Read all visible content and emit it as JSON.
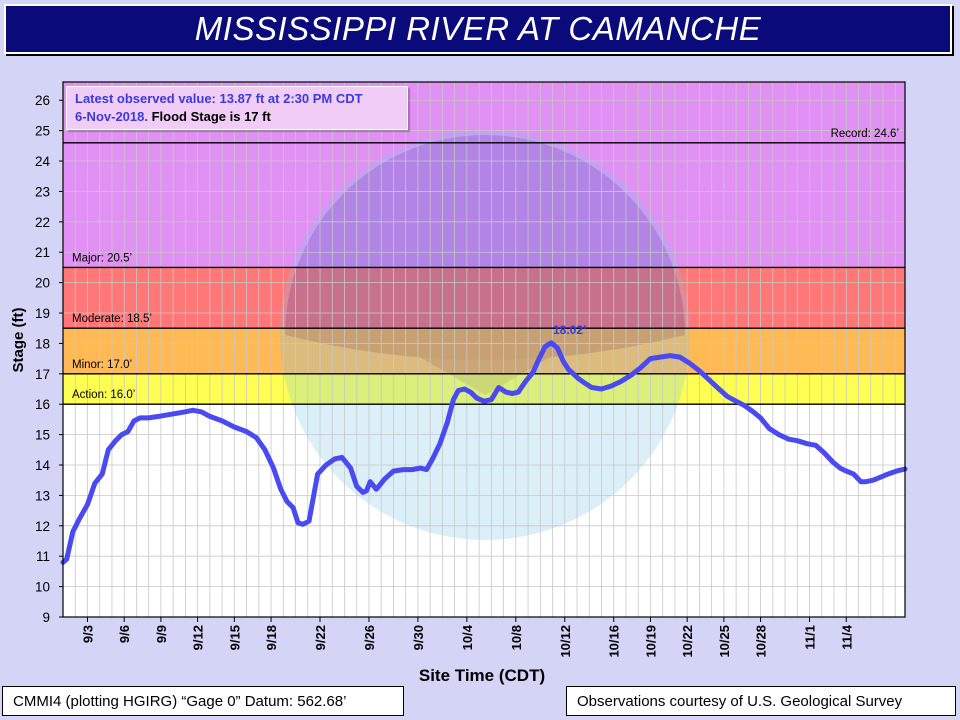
{
  "header": {
    "title": "MISSISSIPPI RIVER AT CAMANCHE"
  },
  "info_box": {
    "line1": "Latest observed value: 13.87 ft at 2:30 PM CDT",
    "line2_date": "6-Nov-2018",
    "line2_flood": "Flood Stage is 17 ft"
  },
  "footer": {
    "datum": "CMMI4 (plotting HGIRG) “Gage 0” Datum: 562.68’",
    "credit": "Observations courtesy of U.S. Geological Survey"
  },
  "chart_data": {
    "type": "line",
    "xlabel": "Site Time (CDT)",
    "ylabel": "Stage (ft)",
    "ylim": [
      9,
      26.6
    ],
    "yticks": [
      9,
      10,
      11,
      12,
      13,
      14,
      15,
      16,
      17,
      18,
      19,
      20,
      21,
      22,
      23,
      24,
      25,
      26
    ],
    "x_range_days": [
      0,
      68.8
    ],
    "x_tick_days": [
      2,
      5,
      8,
      11,
      14,
      17,
      21,
      25,
      29,
      33,
      37,
      41,
      45,
      48,
      51,
      54,
      57,
      61,
      64
    ],
    "x_tick_labels": [
      "9/3",
      "9/6",
      "9/9",
      "9/12",
      "9/15",
      "9/18",
      "9/22",
      "9/26",
      "9/30",
      "10/4",
      "10/8",
      "10/12",
      "10/16",
      "10/19",
      "10/22",
      "10/25",
      "10/28",
      "11/1",
      "11/4"
    ],
    "grid": true,
    "bands": [
      {
        "name": "action",
        "from": 16.0,
        "to": 17.0,
        "color": "#ffff44"
      },
      {
        "name": "minor",
        "from": 17.0,
        "to": 18.5,
        "color": "#ffb347"
      },
      {
        "name": "moderate",
        "from": 18.5,
        "to": 20.5,
        "color": "#ff6b6b"
      },
      {
        "name": "major",
        "from": 20.5,
        "to": 26.6,
        "color": "#dd88f2"
      }
    ],
    "threshold_lines": [
      {
        "value": 16.0,
        "label": "Action: 16.0’",
        "label_align": "left"
      },
      {
        "value": 17.0,
        "label": "Minor: 17.0’",
        "label_align": "left"
      },
      {
        "value": 18.5,
        "label": "Moderate: 18.5’",
        "label_align": "left"
      },
      {
        "value": 20.5,
        "label": "Major: 20.5’",
        "label_align": "left"
      },
      {
        "value": 24.6,
        "label": "Record: 24.6’",
        "label_align": "right"
      }
    ],
    "peak_annotation": {
      "x": 41.4,
      "y": 18.02,
      "label": "18.02’"
    },
    "series": [
      {
        "color": "#4a4af0",
        "x": [
          0,
          0.3,
          0.8,
          1.3,
          2,
          2.6,
          3.2,
          3.7,
          4.3,
          4.8,
          5.3,
          5.8,
          6.3,
          7,
          7.8,
          8.5,
          9.3,
          10,
          10.6,
          11.3,
          12,
          13,
          14,
          15,
          15.8,
          16.5,
          17.2,
          17.8,
          18.3,
          18.8,
          19.2,
          19.6,
          20.1,
          20.8,
          21.5,
          22.2,
          22.8,
          23.5,
          24,
          24.5,
          24.8,
          25.1,
          25.6,
          26.3,
          27,
          27.8,
          28.5,
          29.2,
          29.7,
          30.2,
          30.8,
          31.4,
          31.9,
          32.3,
          32.8,
          33.3,
          33.8,
          34.4,
          35,
          35.6,
          36.2,
          36.7,
          37.2,
          37.8,
          38.4,
          38.9,
          39.4,
          39.9,
          40.4,
          40.9,
          41.3,
          41.7,
          42.1,
          42.6,
          43.2,
          44,
          44.8,
          45.6,
          46.4,
          47.2,
          48,
          48.8,
          49.6,
          50.4,
          51.2,
          52,
          52.8,
          53.6,
          54.3,
          55,
          55.7,
          56.4,
          57,
          57.7,
          58.5,
          59.3,
          60,
          60.8,
          61.5,
          62.2,
          62.9,
          63.5,
          64,
          64.6,
          65.2,
          65.6,
          66.2,
          66.8,
          67.4,
          68.1,
          68.8
        ],
        "values": [
          10.8,
          10.9,
          11.8,
          12.2,
          12.7,
          13.4,
          13.7,
          14.5,
          14.8,
          15.0,
          15.1,
          15.45,
          15.55,
          15.55,
          15.6,
          15.65,
          15.7,
          15.75,
          15.8,
          15.75,
          15.6,
          15.45,
          15.25,
          15.1,
          14.9,
          14.5,
          13.9,
          13.2,
          12.8,
          12.6,
          12.1,
          12.05,
          12.15,
          13.7,
          14.0,
          14.2,
          14.25,
          13.9,
          13.3,
          13.1,
          13.15,
          13.45,
          13.2,
          13.55,
          13.8,
          13.85,
          13.85,
          13.9,
          13.85,
          14.2,
          14.7,
          15.4,
          16.15,
          16.45,
          16.5,
          16.4,
          16.2,
          16.1,
          16.15,
          16.55,
          16.4,
          16.35,
          16.4,
          16.75,
          17.05,
          17.5,
          17.9,
          18.02,
          17.85,
          17.4,
          17.15,
          17.0,
          16.85,
          16.7,
          16.55,
          16.5,
          16.6,
          16.75,
          16.95,
          17.2,
          17.5,
          17.55,
          17.6,
          17.55,
          17.35,
          17.1,
          16.8,
          16.5,
          16.25,
          16.1,
          15.95,
          15.75,
          15.55,
          15.2,
          15.0,
          14.85,
          14.8,
          14.7,
          14.65,
          14.4,
          14.1,
          13.9,
          13.8,
          13.7,
          13.45,
          13.45,
          13.5,
          13.6,
          13.7,
          13.8,
          13.87
        ]
      }
    ]
  }
}
